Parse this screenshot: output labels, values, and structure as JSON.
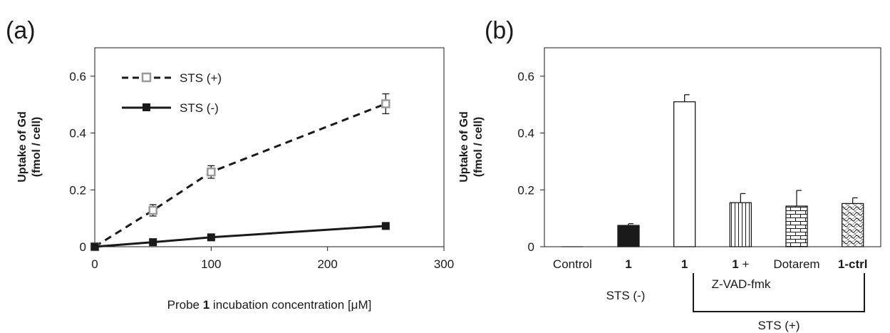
{
  "chart_data": [
    {
      "panel": "(a)",
      "type": "line",
      "xlabel_parts": {
        "pre": "Probe ",
        "bold": "1",
        "post": " incubation concentration [μM]"
      },
      "ylabel_line1": "Uptake of Gd",
      "ylabel_line2": "(fmol / cell)",
      "xlim": [
        0,
        300
      ],
      "ylim": [
        0,
        0.7
      ],
      "xticks": [
        "0",
        "100",
        "200",
        "300"
      ],
      "yticks": [
        "0",
        "0.2",
        "0.4",
        "0.6"
      ],
      "legend_position": "top-left",
      "grid": false,
      "series": [
        {
          "name": "STS (+)",
          "style": "dashed",
          "color": "#1a1a1a",
          "marker_color": "#9a9a9a",
          "x": [
            0,
            50,
            100,
            250
          ],
          "y": [
            0,
            0.128,
            0.263,
            0.503
          ],
          "err": [
            0,
            0.02,
            0.022,
            0.035
          ]
        },
        {
          "name": "STS (-)",
          "style": "solid",
          "color": "#1a1a1a",
          "marker_color": "#1a1a1a",
          "x": [
            0,
            50,
            100,
            250
          ],
          "y": [
            0,
            0.016,
            0.033,
            0.073
          ],
          "err": [
            0,
            0.004,
            0.004,
            0.005
          ]
        }
      ]
    },
    {
      "panel": "(b)",
      "type": "bar",
      "ylabel_line1": "Uptake of Gd",
      "ylabel_line2": "(fmol / cell)",
      "ylim": [
        0,
        0.7
      ],
      "yticks": [
        "0",
        "0.2",
        "0.4",
        "0.6"
      ],
      "grid": false,
      "categories": [
        {
          "label": "Control",
          "bold": false,
          "suffix": ""
        },
        {
          "label": "1",
          "bold": true,
          "suffix": ""
        },
        {
          "label": "1",
          "bold": true,
          "suffix": ""
        },
        {
          "label": "1",
          "bold": true,
          "suffix": " +"
        },
        {
          "label": "Dotarem",
          "bold": false,
          "suffix": ""
        },
        {
          "label": "1-ctrl",
          "bold": true,
          "suffix": ""
        }
      ],
      "values": [
        0,
        0.075,
        0.51,
        0.155,
        0.143,
        0.152
      ],
      "errors": [
        0,
        0.006,
        0.025,
        0.032,
        0.055,
        0.02
      ],
      "fills": [
        "none",
        "solid",
        "white",
        "vertical-lines",
        "bricks",
        "waves"
      ],
      "group_labels": {
        "sts_minus": "STS (-)",
        "zvad": "Z-VAD-fmk",
        "sts_plus": "STS (+)"
      }
    }
  ]
}
